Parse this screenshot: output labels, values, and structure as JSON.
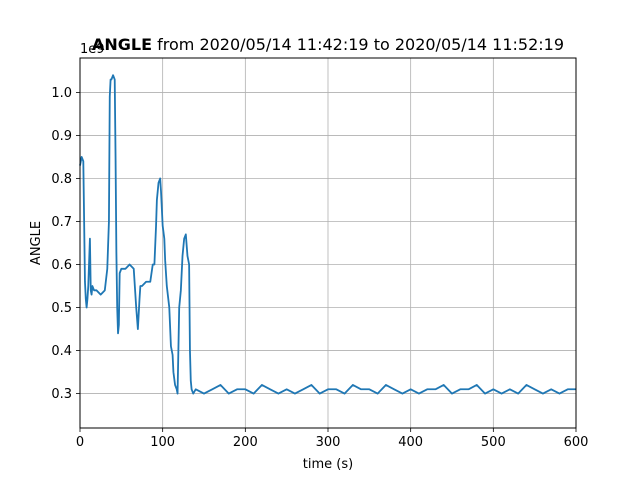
{
  "chart_data": {
    "type": "line",
    "title_bold": "ANGLE",
    "title_rest": " from 2020/05/14 11:42:19 to 2020/05/14 11:52:19",
    "xlabel": "time (s)",
    "ylabel": "ANGLE",
    "offset_label": "1e9",
    "xlim": [
      0,
      600
    ],
    "ylim": [
      0.22,
      1.08
    ],
    "xticks": [
      0,
      100,
      200,
      300,
      400,
      500,
      600
    ],
    "yticks": [
      0.3,
      0.4,
      0.5,
      0.6,
      0.7,
      0.8,
      0.9,
      1.0
    ],
    "ytick_labels": [
      "0.3",
      "0.4",
      "0.5",
      "0.6",
      "0.7",
      "0.8",
      "0.9",
      "1.0"
    ],
    "grid": true,
    "line_color": "#1f77b4",
    "series": [
      {
        "x": [
          0,
          2,
          4,
          6,
          7,
          8,
          9,
          10,
          12,
          13,
          14,
          15,
          17,
          20,
          25,
          30,
          33,
          35,
          36,
          37,
          38,
          40,
          42,
          43,
          44,
          45,
          46,
          47,
          48,
          50,
          55,
          60,
          65,
          68,
          70,
          72,
          73,
          75,
          80,
          85,
          88,
          90,
          92,
          93,
          95,
          97,
          98,
          100,
          102,
          103,
          105,
          108,
          110,
          112,
          113,
          115,
          117,
          118,
          120,
          122,
          124,
          126,
          128,
          130,
          132,
          133,
          134,
          135,
          137,
          140,
          150,
          160,
          170,
          180,
          190,
          200,
          210,
          220,
          230,
          240,
          250,
          260,
          270,
          280,
          290,
          300,
          310,
          320,
          330,
          340,
          350,
          360,
          370,
          380,
          390,
          400,
          410,
          420,
          430,
          440,
          450,
          460,
          470,
          480,
          490,
          500,
          510,
          520,
          530,
          540,
          550,
          560,
          570,
          580,
          590,
          600
        ],
        "y": [
          0.83,
          0.85,
          0.84,
          0.56,
          0.52,
          0.5,
          0.52,
          0.55,
          0.66,
          0.54,
          0.53,
          0.55,
          0.54,
          0.54,
          0.53,
          0.54,
          0.59,
          0.7,
          0.99,
          1.03,
          1.03,
          1.04,
          1.03,
          0.85,
          0.63,
          0.5,
          0.44,
          0.46,
          0.58,
          0.59,
          0.59,
          0.6,
          0.59,
          0.5,
          0.45,
          0.52,
          0.55,
          0.55,
          0.56,
          0.56,
          0.6,
          0.6,
          0.69,
          0.75,
          0.79,
          0.8,
          0.77,
          0.69,
          0.66,
          0.61,
          0.55,
          0.5,
          0.41,
          0.39,
          0.35,
          0.32,
          0.31,
          0.3,
          0.5,
          0.54,
          0.62,
          0.66,
          0.67,
          0.62,
          0.6,
          0.4,
          0.33,
          0.31,
          0.3,
          0.31,
          0.3,
          0.31,
          0.32,
          0.3,
          0.31,
          0.31,
          0.3,
          0.32,
          0.31,
          0.3,
          0.31,
          0.3,
          0.31,
          0.32,
          0.3,
          0.31,
          0.31,
          0.3,
          0.32,
          0.31,
          0.31,
          0.3,
          0.32,
          0.31,
          0.3,
          0.31,
          0.3,
          0.31,
          0.31,
          0.32,
          0.3,
          0.31,
          0.31,
          0.32,
          0.3,
          0.31,
          0.3,
          0.31,
          0.3,
          0.32,
          0.31,
          0.3,
          0.31,
          0.3,
          0.31,
          0.31
        ]
      }
    ]
  }
}
